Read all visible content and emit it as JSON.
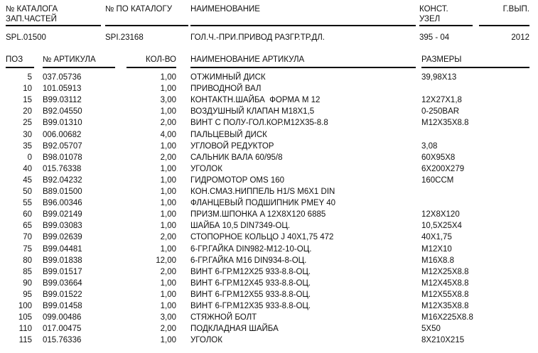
{
  "colors": {
    "text": "#111111",
    "rule": "#000000",
    "background": "#ffffff"
  },
  "catalog_header": {
    "parts_catalog": {
      "label": "№ КАТАЛОГА\nЗАП.ЧАСТЕЙ",
      "value": "SPL.01500"
    },
    "by_catalog": {
      "label": "№ ПО КАТАЛОГУ",
      "value": "SPI.23168"
    },
    "name": {
      "label": "НАИМЕНОВАНИЕ",
      "value": "ГОЛ.Ч.-ПРИ.ПРИВОД РАЗГР.ТР.ДЛ."
    },
    "const_node": {
      "label": "КОНСТ.\nУЗЕЛ",
      "value": "395 - 04"
    },
    "year": {
      "label": "Г.ВЫП.",
      "value": "2012"
    }
  },
  "parts_table": {
    "headers": {
      "pos": "ПОЗ",
      "article": "№ АРТИКУЛА",
      "qty": "КОЛ-ВО",
      "name": "НАИМЕНОВАНИЕ АРТИКУЛА",
      "size": "РАЗМЕРЫ"
    },
    "rows": [
      {
        "pos": "5",
        "article": "037.05736",
        "qty": "1,00",
        "name": "ОТЖИМНЫЙ ДИСК",
        "size": "39,98X13"
      },
      {
        "pos": "10",
        "article": "101.05913",
        "qty": "1,00",
        "name": "ПРИВОДНОЙ ВАЛ",
        "size": ""
      },
      {
        "pos": "15",
        "article": "B99.03112",
        "qty": "3,00",
        "name": "КОНТАКТН.ШАЙБА  ФОРМА М 12",
        "size": "12X27X1,8"
      },
      {
        "pos": "20",
        "article": "B92.04550",
        "qty": "1,00",
        "name": "ВОЗДУШНЫЙ КЛАПАН М18X1,5",
        "size": "0-250BAR"
      },
      {
        "pos": "25",
        "article": "B99.01310",
        "qty": "2,00",
        "name": "ВИНТ С ПОЛУ-ГОЛ.КОР.М12X35-8.8",
        "size": "M12X35X8.8"
      },
      {
        "pos": "30",
        "article": "006.00682",
        "qty": "4,00",
        "name": "ПАЛЬЦЕВЫЙ ДИСК",
        "size": ""
      },
      {
        "pos": "35",
        "article": "B92.05707",
        "qty": "1,00",
        "name": "УГЛОВОЙ РЕДУКТОР",
        "size": "3,08"
      },
      {
        "pos": "0",
        "article": "B98.01078",
        "qty": "2,00",
        "name": "САЛЬНИК ВАЛА 60/95/8",
        "size": "60X95X8"
      },
      {
        "pos": "40",
        "article": "015.76338",
        "qty": "1,00",
        "name": "УГОЛОК",
        "size": "6X200X279"
      },
      {
        "pos": "45",
        "article": "B92.04232",
        "qty": "1,00",
        "name": "ГИДРОМОТОР OMS 160",
        "size": "160CCM"
      },
      {
        "pos": "50",
        "article": "B89.01500",
        "qty": "1,00",
        "name": "КОН.СМАЗ.НИППЕЛЬ H1/S M6X1 DIN",
        "size": ""
      },
      {
        "pos": "55",
        "article": "B96.00346",
        "qty": "1,00",
        "name": "ФЛАНЦЕВЫЙ ПОДШИПНИК PMEY 40",
        "size": ""
      },
      {
        "pos": "60",
        "article": "B99.02149",
        "qty": "1,00",
        "name": "ПРИЗМ.ШПОНКА A 12X8X120 6885",
        "size": "12X8X120"
      },
      {
        "pos": "65",
        "article": "B99.03083",
        "qty": "1,00",
        "name": "ШАЙБА 10,5 DIN7349-ОЦ.",
        "size": "10,5X25X4"
      },
      {
        "pos": "70",
        "article": "B99.02639",
        "qty": "2,00",
        "name": "СТОПОРНОЕ КОЛЬЦО J 40X1,75 472",
        "size": "40X1,75"
      },
      {
        "pos": "75",
        "article": "B99.04481",
        "qty": "1,00",
        "name": "6-ГР.ГАЙКА DIN982-M12-10-ОЦ.",
        "size": "M12X10"
      },
      {
        "pos": "80",
        "article": "B99.01838",
        "qty": "12,00",
        "name": "6-ГР.ГАЙКА М16 DIN934-8-ОЦ.",
        "size": "M16X8.8"
      },
      {
        "pos": "85",
        "article": "B99.01517",
        "qty": "2,00",
        "name": "ВИНТ 6-ГР.М12X25 933-8.8-ОЦ.",
        "size": "M12X25X8.8"
      },
      {
        "pos": "90",
        "article": "B99.03664",
        "qty": "1,00",
        "name": "ВИНТ 6-ГР.М12X45 933-8.8-ОЦ.",
        "size": "M12X45X8.8"
      },
      {
        "pos": "95",
        "article": "B99.01522",
        "qty": "1,00",
        "name": "ВИНТ 6-ГР.М12X55 933-8.8-ОЦ.",
        "size": "M12X55X8.8"
      },
      {
        "pos": "100",
        "article": "B99.01458",
        "qty": "1,00",
        "name": "ВИНТ 6-ГР.М12X35 933-8.8-ОЦ.",
        "size": "M12X35X8.8"
      },
      {
        "pos": "105",
        "article": "099.00486",
        "qty": "3,00",
        "name": "СТЯЖНОЙ БОЛТ",
        "size": "M16X225X8.8"
      },
      {
        "pos": "110",
        "article": "017.00475",
        "qty": "2,00",
        "name": "ПОДКЛАДНАЯ ШАЙБА",
        "size": "5X50"
      },
      {
        "pos": "115",
        "article": "015.76336",
        "qty": "1,00",
        "name": "УГОЛОК",
        "size": "8X210X215"
      }
    ]
  }
}
